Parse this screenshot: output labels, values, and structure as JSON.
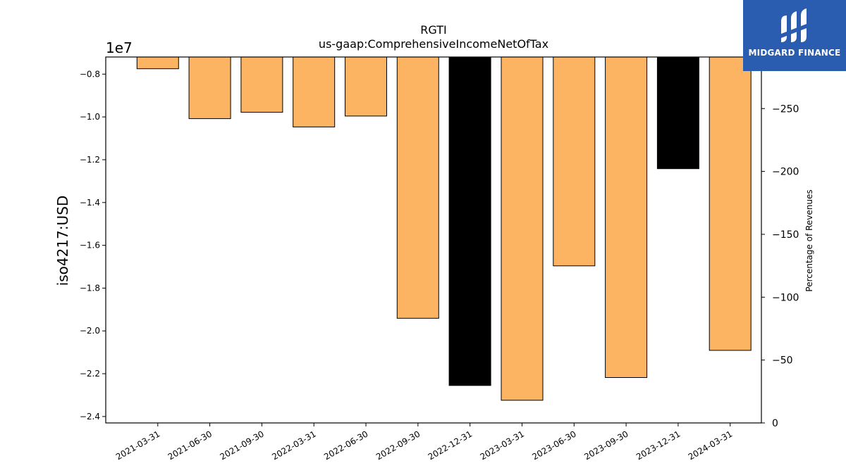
{
  "chart_data": {
    "type": "bar",
    "title": "RGTI",
    "subtitle": "us-gaap:ComprehensiveIncomeNetOfTax",
    "ylabel": "iso4217:USD",
    "y2label": "Percentage of Revenues",
    "offset_label": "1e7",
    "categories": [
      "2021-03-31",
      "2021-06-30",
      "2021-09-30",
      "2022-03-31",
      "2022-06-30",
      "2022-09-30",
      "2022-12-31",
      "2023-03-31",
      "2023-06-30",
      "2023-09-30",
      "2023-12-31",
      "2024-03-31"
    ],
    "values": [
      -7750000,
      -10080000,
      -9780000,
      -10470000,
      -9960000,
      -19410000,
      -22550000,
      -23240000,
      -16960000,
      -22180000,
      -12420000,
      -20910000
    ],
    "bar_colors": [
      "#fdb462",
      "#fdb462",
      "#fdb462",
      "#fdb462",
      "#fdb462",
      "#fdb462",
      "#000000",
      "#fdb462",
      "#fdb462",
      "#fdb462",
      "#000000",
      "#fdb462"
    ],
    "ylim": [
      -24300000,
      -7200000
    ],
    "yticks": [
      -8000000,
      -10000000,
      -12000000,
      -14000000,
      -16000000,
      -18000000,
      -20000000,
      -22000000,
      -24000000
    ],
    "ytick_labels": [
      "−0.8",
      "−1.0",
      "−1.2",
      "−1.4",
      "−1.6",
      "−1.8",
      "−2.0",
      "−2.2",
      "−2.4"
    ],
    "y2lim": [
      0,
      -291
    ],
    "y2ticks": [
      0,
      -50,
      -100,
      -150,
      -200,
      -250
    ],
    "y2tick_labels": [
      "0",
      "−50",
      "−100",
      "−150",
      "−200",
      "−250"
    ],
    "grid": false
  },
  "logo": {
    "text": "MIDGARD FINANCE",
    "bg_color": "#2a5db0"
  }
}
